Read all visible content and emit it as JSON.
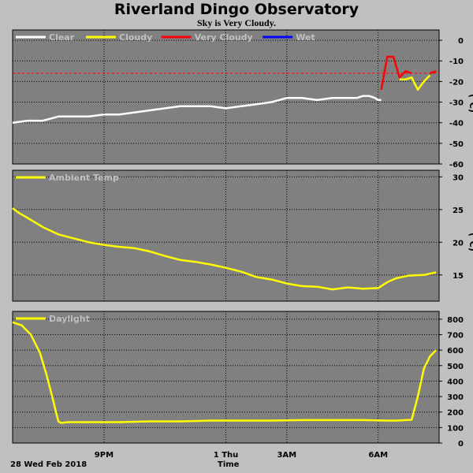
{
  "header": {
    "title": "Riverland Dingo Observatory",
    "subtitle": "Sky is Very Cloudy."
  },
  "footer": {
    "date_label": "28 Wed Feb 2018",
    "x_title": "Time"
  },
  "x_axis": {
    "ticks": [
      "9PM",
      "1 Thu",
      "3AM",
      "6AM"
    ]
  },
  "colors": {
    "panel_bg": "#808080",
    "frame_bg": "#c0c0c0",
    "grid": "#000000",
    "clear": "#ffffff",
    "cloudy": "#ffff00",
    "very_cloudy": "#ff0000",
    "wet": "#0000ff",
    "threshold": "#ff0000",
    "temp": "#ffff00",
    "daylight": "#ffff00"
  },
  "chart_data": [
    {
      "type": "line",
      "title": "",
      "ylabel": "C",
      "y_unit_label": "(°C)",
      "ylim": [
        -60,
        5
      ],
      "yticks": [
        0,
        -10,
        -20,
        -30,
        -40,
        -50,
        -60
      ],
      "grid": true,
      "legend": {
        "placement": "top-left",
        "entries": [
          {
            "name": "Clear",
            "color": "#ffffff"
          },
          {
            "name": "Cloudy",
            "color": "#ffff00"
          },
          {
            "name": "Very Cloudy",
            "color": "#ff0000"
          },
          {
            "name": "Wet",
            "color": "#0000ff"
          }
        ]
      },
      "threshold": {
        "y": -16,
        "color": "#ff0000",
        "style": "dashed"
      },
      "x_hours": [
        18.0,
        18.5,
        19.0,
        19.5,
        20.0,
        20.5,
        21.0,
        21.5,
        22.0,
        22.5,
        23.0,
        23.5,
        24.0,
        24.5,
        25.0,
        25.5,
        26.0,
        26.5,
        27.0,
        27.5,
        28.0,
        28.5,
        29.0,
        29.3,
        29.5,
        29.7,
        29.9,
        30.0,
        30.1,
        30.3,
        30.5,
        30.7,
        30.9,
        31.1,
        31.3,
        31.5,
        31.7,
        31.9
      ],
      "series": [
        {
          "name": "Clear",
          "values": [
            -40,
            -39,
            -39,
            -37,
            -37,
            -37,
            -36,
            -36,
            -35,
            -34,
            -33,
            -32,
            -32,
            -32,
            -33,
            -32,
            -31,
            -30,
            -28,
            -28,
            -29,
            -28,
            -28,
            -28,
            -27,
            -27,
            -28,
            -29,
            -29,
            null,
            null,
            null,
            null,
            null,
            null,
            null,
            null,
            null
          ]
        },
        {
          "name": "Cloudy",
          "values": [
            null,
            null,
            null,
            null,
            null,
            null,
            null,
            null,
            null,
            null,
            null,
            null,
            null,
            null,
            null,
            null,
            null,
            null,
            null,
            null,
            null,
            null,
            null,
            null,
            null,
            null,
            null,
            null,
            null,
            null,
            null,
            -19,
            -19,
            -18,
            -24,
            -20,
            -17,
            null
          ]
        },
        {
          "name": "Very Cloudy",
          "values": [
            null,
            null,
            null,
            null,
            null,
            null,
            null,
            null,
            null,
            null,
            null,
            null,
            null,
            null,
            null,
            null,
            null,
            null,
            null,
            null,
            null,
            null,
            null,
            null,
            null,
            null,
            null,
            null,
            -24,
            -8,
            -8,
            -18,
            -15,
            -16,
            null,
            null,
            -16,
            -15
          ]
        },
        {
          "name": "Wet",
          "values": []
        }
      ]
    },
    {
      "type": "line",
      "title": "",
      "ylabel": "C",
      "y_unit_label": "(°C)",
      "ylim": [
        11,
        31
      ],
      "yticks": [
        30,
        25,
        20,
        15
      ],
      "grid": true,
      "legend": {
        "placement": "top-left",
        "entries": [
          {
            "name": "Ambient Temp",
            "color": "#ffff00"
          }
        ]
      },
      "x_hours": [
        18.0,
        18.2,
        18.5,
        19.0,
        19.5,
        20.0,
        20.5,
        21.0,
        21.5,
        22.0,
        22.5,
        23.0,
        23.5,
        24.0,
        24.5,
        25.0,
        25.5,
        26.0,
        26.5,
        27.0,
        27.5,
        28.0,
        28.5,
        29.0,
        29.5,
        30.0,
        30.3,
        30.6,
        31.0,
        31.5,
        31.9
      ],
      "series": [
        {
          "name": "Ambient Temp",
          "values": [
            25.2,
            24.5,
            23.7,
            22.3,
            21.2,
            20.6,
            20.0,
            19.6,
            19.3,
            19.1,
            18.6,
            17.9,
            17.3,
            17.0,
            16.6,
            16.1,
            15.5,
            14.7,
            14.3,
            13.7,
            13.3,
            13.2,
            12.8,
            13.1,
            12.9,
            13.0,
            13.9,
            14.5,
            14.9,
            15.0,
            15.4
          ]
        }
      ]
    },
    {
      "type": "line",
      "title": "",
      "ylabel": "",
      "ylim": [
        0,
        850
      ],
      "yticks": [
        800,
        700,
        600,
        500,
        400,
        300,
        200,
        100,
        0
      ],
      "grid": true,
      "legend": {
        "placement": "top-left",
        "entries": [
          {
            "name": "Daylight",
            "color": "#ffff00"
          }
        ]
      },
      "x_hours": [
        18.0,
        18.3,
        18.6,
        18.9,
        19.1,
        19.3,
        19.5,
        19.6,
        19.8,
        20.5,
        21.5,
        22.5,
        23.5,
        24.5,
        25.5,
        26.5,
        27.5,
        28.5,
        29.5,
        30.3,
        30.6,
        30.9,
        31.1,
        31.3,
        31.5,
        31.7,
        31.9
      ],
      "series": [
        {
          "name": "Daylight",
          "values": [
            780,
            760,
            700,
            580,
            450,
            300,
            140,
            130,
            135,
            135,
            135,
            140,
            140,
            145,
            145,
            145,
            148,
            148,
            148,
            145,
            145,
            148,
            150,
            300,
            480,
            560,
            600
          ]
        }
      ]
    }
  ]
}
